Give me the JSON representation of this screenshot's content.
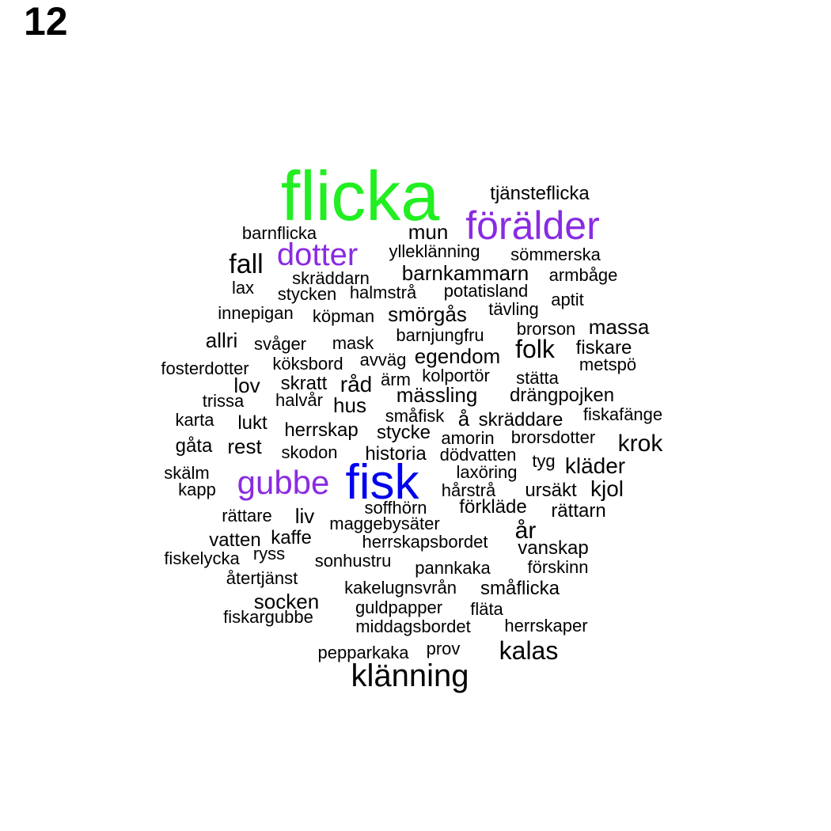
{
  "panel_label": "12",
  "colors": {
    "flicka": "#22ee22",
    "förälder": "#8a2be2",
    "dotter": "#8a2be2",
    "gubbe": "#8a2be2",
    "fisk": "#0000ee",
    "default": "#000000"
  },
  "words": [
    {
      "text": "flicka",
      "color": "#22ee22"
    },
    {
      "text": "förälder",
      "color": "#8a2be2"
    },
    {
      "text": "tjänsteflicka"
    },
    {
      "text": "barnflicka"
    },
    {
      "text": "mun"
    },
    {
      "text": "dotter",
      "color": "#8a2be2"
    },
    {
      "text": "ylleklänning"
    },
    {
      "text": "sömmerska"
    },
    {
      "text": "fall"
    },
    {
      "text": "skräddarn"
    },
    {
      "text": "barnkammarn"
    },
    {
      "text": "armbåge"
    },
    {
      "text": "lax"
    },
    {
      "text": "stycken"
    },
    {
      "text": "halmstrå"
    },
    {
      "text": "potatisland"
    },
    {
      "text": "aptit"
    },
    {
      "text": "innepigan"
    },
    {
      "text": "köpman"
    },
    {
      "text": "smörgås"
    },
    {
      "text": "tävling"
    },
    {
      "text": "brorson"
    },
    {
      "text": "massa"
    },
    {
      "text": "allri"
    },
    {
      "text": "svåger"
    },
    {
      "text": "mask"
    },
    {
      "text": "barnjungfru"
    },
    {
      "text": "folk"
    },
    {
      "text": "fiskare"
    },
    {
      "text": "avväg"
    },
    {
      "text": "egendom"
    },
    {
      "text": "fosterdotter"
    },
    {
      "text": "köksbord"
    },
    {
      "text": "metspö"
    },
    {
      "text": "lov"
    },
    {
      "text": "skratt"
    },
    {
      "text": "råd"
    },
    {
      "text": "ärm"
    },
    {
      "text": "kolportör"
    },
    {
      "text": "stätta"
    },
    {
      "text": "trissa"
    },
    {
      "text": "halvår"
    },
    {
      "text": "hus"
    },
    {
      "text": "mässling"
    },
    {
      "text": "drängpojken"
    },
    {
      "text": "karta"
    },
    {
      "text": "lukt"
    },
    {
      "text": "småfisk"
    },
    {
      "text": "å"
    },
    {
      "text": "skräddare"
    },
    {
      "text": "fiskafänge"
    },
    {
      "text": "herrskap"
    },
    {
      "text": "stycke"
    },
    {
      "text": "amorin"
    },
    {
      "text": "brorsdotter"
    },
    {
      "text": "krok"
    },
    {
      "text": "gåta"
    },
    {
      "text": "rest"
    },
    {
      "text": "skodon"
    },
    {
      "text": "historia"
    },
    {
      "text": "dödvatten"
    },
    {
      "text": "tyg"
    },
    {
      "text": "kläder"
    },
    {
      "text": "skälm"
    },
    {
      "text": "gubbe",
      "color": "#8a2be2"
    },
    {
      "text": "fisk",
      "color": "#0000ee"
    },
    {
      "text": "laxöring"
    },
    {
      "text": "kapp"
    },
    {
      "text": "hårstrå"
    },
    {
      "text": "ursäkt"
    },
    {
      "text": "kjol"
    },
    {
      "text": "soffhörn"
    },
    {
      "text": "förkläde"
    },
    {
      "text": "rättare"
    },
    {
      "text": "liv"
    },
    {
      "text": "rättarn"
    },
    {
      "text": "maggebysäter"
    },
    {
      "text": "år"
    },
    {
      "text": "vatten"
    },
    {
      "text": "kaffe"
    },
    {
      "text": "herrskapsbordet"
    },
    {
      "text": "vanskap"
    },
    {
      "text": "fiskelycka"
    },
    {
      "text": "ryss"
    },
    {
      "text": "sonhustru"
    },
    {
      "text": "pannkaka"
    },
    {
      "text": "förskinn"
    },
    {
      "text": "återtjänst"
    },
    {
      "text": "kakelugnsvrån"
    },
    {
      "text": "småflicka"
    },
    {
      "text": "socken"
    },
    {
      "text": "guldpapper"
    },
    {
      "text": "fiskargubbe"
    },
    {
      "text": "fläta"
    },
    {
      "text": "middagsbordet"
    },
    {
      "text": "herrskaper"
    },
    {
      "text": "pepparkaka"
    },
    {
      "text": "prov"
    },
    {
      "text": "kalas"
    },
    {
      "text": "klänning"
    }
  ]
}
